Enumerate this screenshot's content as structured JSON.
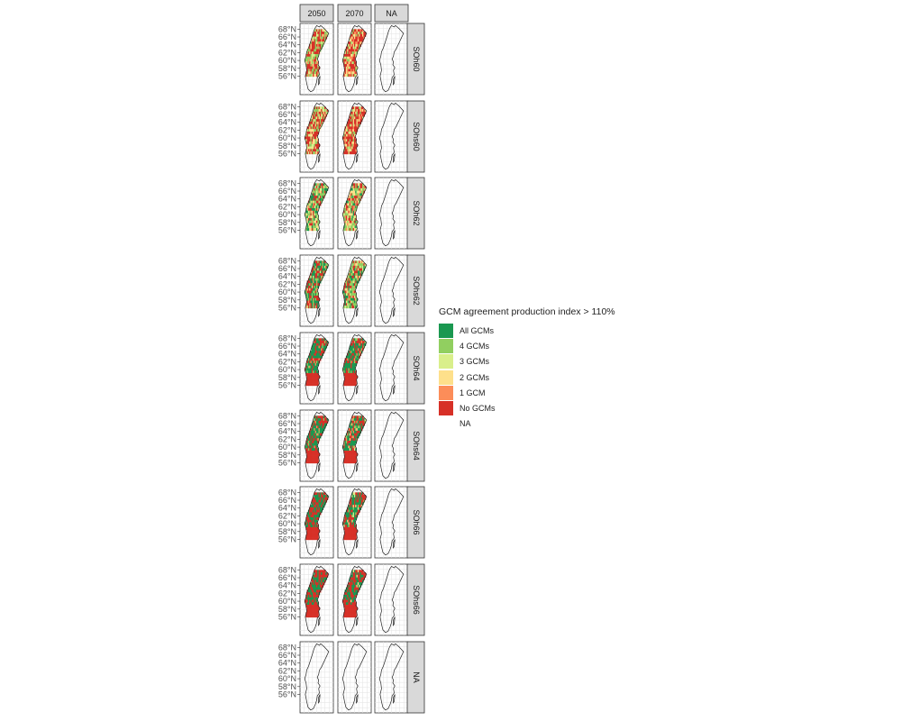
{
  "chart_data": {
    "type": "heatmap",
    "description_of_facets": "map grid",
    "columns": [
      "2050",
      "2070",
      "NA"
    ],
    "rows": [
      "SOh60",
      "SOhs60",
      "SOh62",
      "SOhs62",
      "SOh64",
      "SOhs64",
      "SOh66",
      "SOhs66",
      "NA"
    ],
    "lat_ticks": [
      "68°N",
      "66°N",
      "64°N",
      "62°N",
      "60°N",
      "58°N",
      "56°N"
    ],
    "legend": {
      "title": "GCM agreement production index > 110%",
      "placement": "right",
      "entries": [
        {
          "label": "All GCMs",
          "color": "#1a9850"
        },
        {
          "label": "4 GCMs",
          "color": "#91cf60"
        },
        {
          "label": "3 GCMs",
          "color": "#d9ef8b"
        },
        {
          "label": "2 GCMs",
          "color": "#fee08b"
        },
        {
          "label": "1 GCM",
          "color": "#fc8d59"
        },
        {
          "label": "No GCMs",
          "color": "#d73027"
        },
        {
          "label": "NA",
          "color": "none"
        }
      ]
    },
    "grid": true,
    "panels": {
      "SOh60": {
        "2050": [
          0.0,
          0.3,
          0.12,
          0.1,
          0.1,
          0.38
        ],
        "2070": [
          0.0,
          0.1,
          0.1,
          0.15,
          0.15,
          0.5
        ]
      },
      "SOhs60": {
        "2050": [
          0.0,
          0.2,
          0.15,
          0.15,
          0.05,
          0.45
        ],
        "2070": [
          0.0,
          0.15,
          0.1,
          0.15,
          0.1,
          0.5
        ]
      },
      "SOh62": {
        "2050": [
          0.2,
          0.25,
          0.1,
          0.15,
          0.05,
          0.25
        ],
        "2070": [
          0.1,
          0.3,
          0.1,
          0.2,
          0.1,
          0.2
        ]
      },
      "SOhs62": {
        "2050": [
          0.3,
          0.2,
          0.05,
          0.05,
          0.05,
          0.35
        ],
        "2070": [
          0.2,
          0.35,
          0.1,
          0.05,
          0.05,
          0.25
        ]
      },
      "SOh64": {
        "2050": [
          0.6,
          0.05,
          0.0,
          0.0,
          0.05,
          0.3
        ],
        "2070": [
          0.55,
          0.1,
          0.0,
          0.0,
          0.05,
          0.3
        ]
      },
      "SOhs64": {
        "2050": [
          0.55,
          0.05,
          0.0,
          0.0,
          0.05,
          0.35
        ],
        "2070": [
          0.45,
          0.1,
          0.0,
          0.05,
          0.1,
          0.3
        ]
      },
      "SOh66": {
        "2050": [
          0.5,
          0.0,
          0.0,
          0.0,
          0.0,
          0.5
        ],
        "2070": [
          0.4,
          0.05,
          0.05,
          0.05,
          0.0,
          0.45
        ]
      },
      "SOhs66": {
        "2050": [
          0.45,
          0.0,
          0.0,
          0.0,
          0.0,
          0.55
        ],
        "2070": [
          0.45,
          0.0,
          0.0,
          0.05,
          0.0,
          0.5
        ]
      },
      "NA": {}
    }
  }
}
